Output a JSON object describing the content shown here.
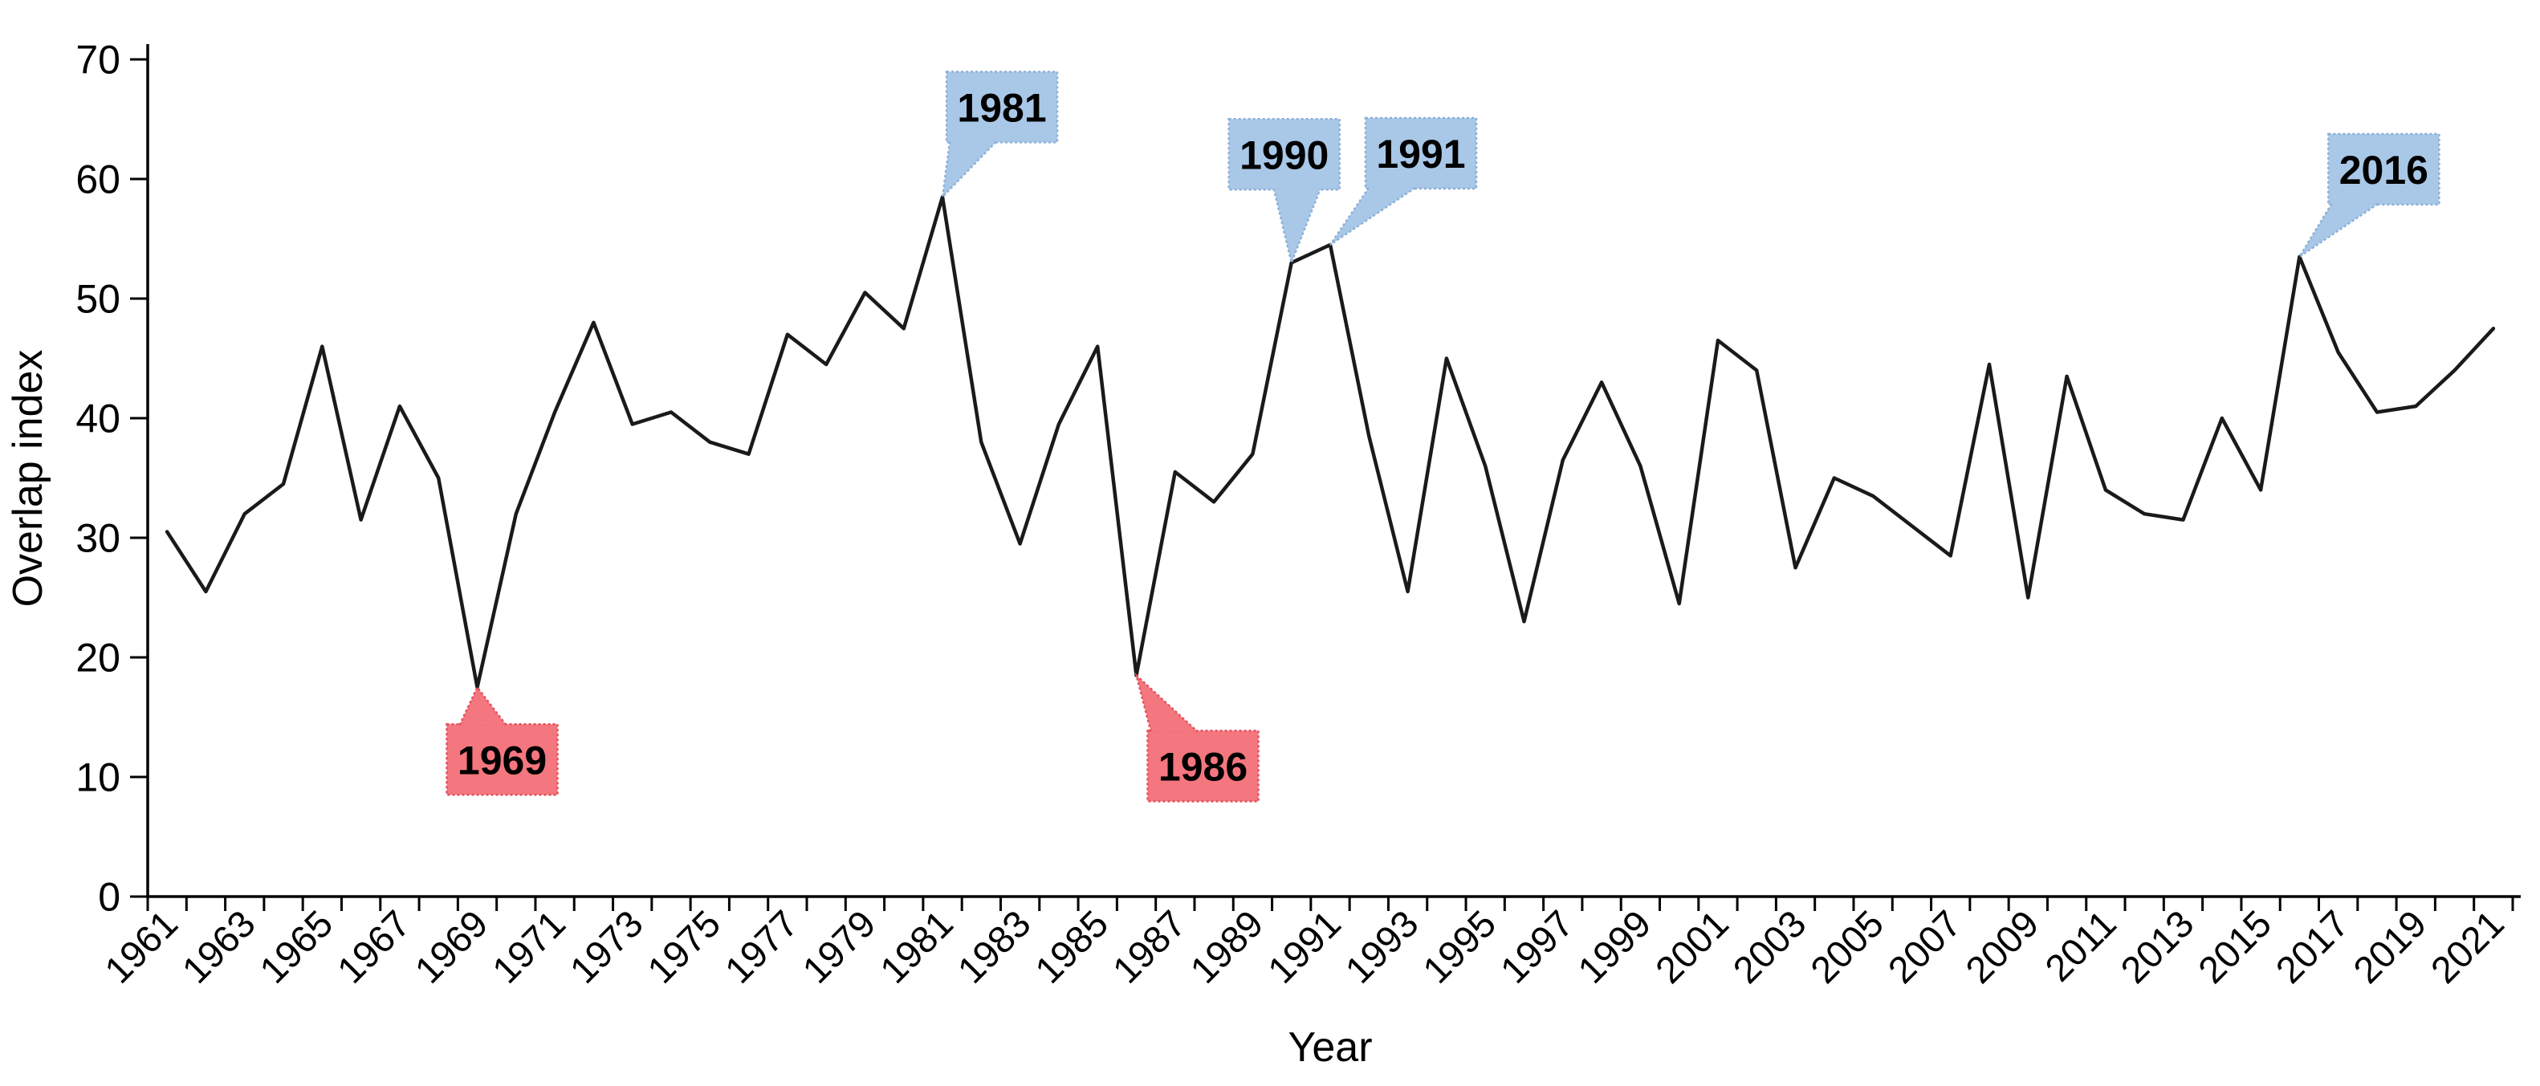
{
  "chart_data": {
    "type": "line",
    "x": [
      1961,
      1962,
      1963,
      1964,
      1965,
      1966,
      1967,
      1968,
      1969,
      1970,
      1971,
      1972,
      1973,
      1974,
      1975,
      1976,
      1977,
      1978,
      1979,
      1980,
      1981,
      1982,
      1983,
      1984,
      1985,
      1986,
      1987,
      1988,
      1989,
      1990,
      1991,
      1992,
      1993,
      1994,
      1995,
      1996,
      1997,
      1998,
      1999,
      2000,
      2001,
      2002,
      2003,
      2004,
      2005,
      2006,
      2007,
      2008,
      2009,
      2010,
      2011,
      2012,
      2013,
      2014,
      2015,
      2016,
      2017,
      2018,
      2019,
      2020,
      2021
    ],
    "values": [
      30.5,
      25.5,
      32,
      34.5,
      46,
      31.5,
      41,
      35,
      17.5,
      32,
      40.5,
      48,
      39.5,
      40.5,
      38,
      37,
      47,
      44.5,
      50.5,
      47.5,
      58.5,
      38,
      29.5,
      39.5,
      46,
      18.5,
      35.5,
      33,
      37,
      53,
      54.5,
      38.5,
      25.5,
      45,
      36,
      23,
      36.5,
      43,
      36,
      24.5,
      46.5,
      44,
      27.5,
      35,
      33.5,
      31,
      28.5,
      44.5,
      25,
      43.5,
      34,
      32,
      31.5,
      40,
      34,
      53.5,
      45.5,
      40.5,
      41,
      44,
      47.5
    ],
    "xlabel": "Year",
    "ylabel": "Overlap index",
    "ylim": [
      0,
      70
    ],
    "ytick_step": 10,
    "xtick_label_step": 2,
    "grid": "off",
    "legend": "none",
    "line_color": "#1a1a1a",
    "axis_color": "#000000",
    "annotation_colors": {
      "high_fill": "#a9c8e8",
      "high_border": "#8cb0d6",
      "low_fill": "#f4767e",
      "low_border": "#e2525c"
    },
    "annotations": [
      {
        "label": "1969",
        "year": 1969,
        "type": "low",
        "box_dx": -38,
        "box_dy": 46
      },
      {
        "label": "1986",
        "year": 1986,
        "type": "low",
        "box_dx": 14,
        "box_dy": 69
      },
      {
        "label": "1981",
        "year": 1981,
        "type": "high",
        "box_dx": 5,
        "box_dy": -156
      },
      {
        "label": "1990",
        "year": 1990,
        "type": "high",
        "box_dx": -78,
        "box_dy": -179
      },
      {
        "label": "1991",
        "year": 1991,
        "type": "high",
        "box_dx": 44,
        "box_dy": -158
      },
      {
        "label": "2016",
        "year": 2016,
        "type": "high",
        "box_dx": 36,
        "box_dy": -153
      }
    ]
  }
}
